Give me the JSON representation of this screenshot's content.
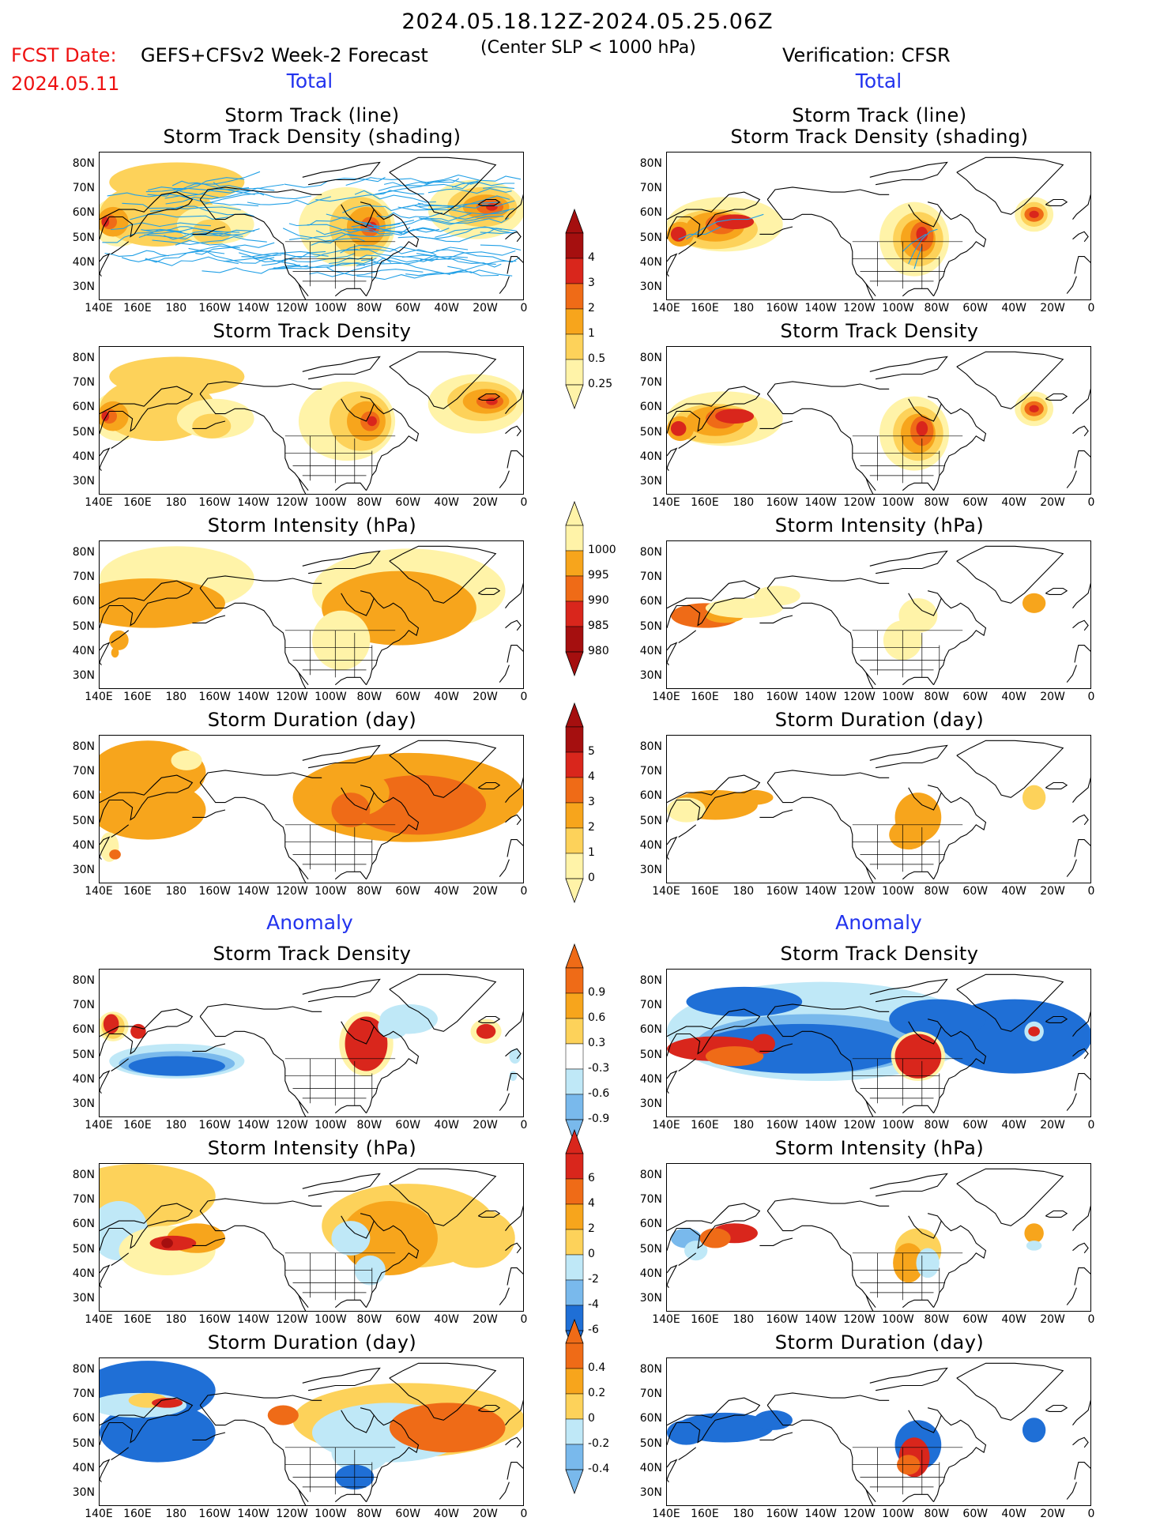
{
  "header": {
    "period": "2024.05.18.12Z-2024.05.25.06Z",
    "fcst_label": "FCST Date:",
    "fcst_date": "2024.05.11",
    "model": "GEFS+CFSv2 Week-2 Forecast",
    "center_note": "(Center SLP < 1000 hPa)",
    "verification": "Verification: CFSR"
  },
  "sections": {
    "total": "Total",
    "anomaly": "Anomaly"
  },
  "panel_titles": {
    "track_line": "Storm Track (line)",
    "track_shading": "Storm Track Density (shading)",
    "density": "Storm Track Density",
    "intensity": "Storm Intensity (hPa)",
    "duration": "Storm Duration (day)"
  },
  "axes": {
    "lat_labels": [
      "80N",
      "70N",
      "60N",
      "50N",
      "40N",
      "30N"
    ],
    "lon_labels": [
      "140E",
      "160E",
      "180",
      "160W",
      "140W",
      "120W",
      "100W",
      "80W",
      "60W",
      "40W",
      "20W",
      "0"
    ]
  },
  "colorbars": {
    "density_total": [
      "4",
      "3",
      "2",
      "1",
      "0.5",
      "0.25"
    ],
    "intensity_total": [
      "1000",
      "995",
      "990",
      "985",
      "980"
    ],
    "duration_total": [
      "5",
      "4",
      "3",
      "2",
      "1",
      "0"
    ],
    "density_anom": [
      "0.9",
      "0.6",
      "0.3",
      "-0.3",
      "-0.6",
      "-0.9"
    ],
    "intensity_anom": [
      "6",
      "4",
      "2",
      "0",
      "-2",
      "-4",
      "-6"
    ],
    "duration_anom": [
      "0.4",
      "0.2",
      "0",
      "-0.2",
      "-0.4"
    ]
  },
  "colors": {
    "pale_yellow": "#fff3a8",
    "light_orange": "#fdd25a",
    "orange": "#f7a51c",
    "dark_orange": "#ef6b17",
    "red": "#d9261c",
    "dark_red": "#a50f0f",
    "light_blue": "#bfe8f7",
    "mid_blue": "#79b9ec",
    "blue": "#1f6fd6",
    "track_blue": "#22a0e6",
    "title_red": "#ee1111",
    "section_blue": "#2233ee"
  }
}
